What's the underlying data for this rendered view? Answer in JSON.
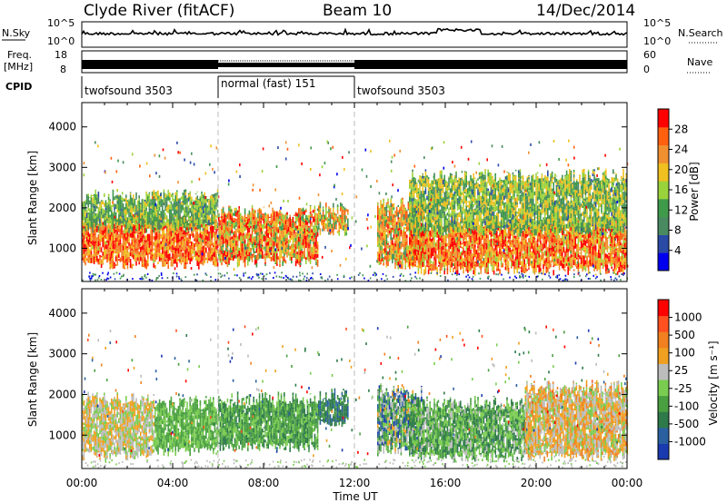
{
  "header": {
    "station": "Clyde River (fitACF)",
    "beam": "Beam 10",
    "date": "14/Dec/2014"
  },
  "strip": {
    "nsky_label": "N.Sky",
    "nsearch_label": "N.Search",
    "freq_label_1": "Freq.",
    "freq_label_2": "[MHz]",
    "nave_label": "Nave",
    "cpid_label": "CPID",
    "noise_ticks": [
      "10^5",
      "10^0"
    ],
    "freq_ticks": [
      "18",
      "8"
    ],
    "nave_ticks": [
      "60",
      "0"
    ]
  },
  "cpid_segments": [
    {
      "name": "twofsound 3503",
      "start": 0,
      "end": 6
    },
    {
      "name": "normal (fast) 151",
      "start": 6,
      "end": 12
    },
    {
      "name": "twofsound 3503",
      "start": 12,
      "end": 24
    }
  ],
  "colors": {
    "power": [
      "#0000ee",
      "#2a4aa6",
      "#4a8a60",
      "#3f9a4a",
      "#9ad23c",
      "#f0c020",
      "#f09030",
      "#ff6010",
      "#ff0000"
    ],
    "velocity": [
      "#1a3ab0",
      "#2a60a0",
      "#2e7a4a",
      "#4aa040",
      "#7acc50",
      "#bcbcbc",
      "#f0a020",
      "#f08020",
      "#ff5020",
      "#ff0000"
    ]
  },
  "chart_data": [
    {
      "type": "heatmap",
      "title": "",
      "xlabel": "Time UT",
      "ylabel": "Slant Range [km]",
      "x_ticks": [
        "00:00",
        "04:00",
        "08:00",
        "12:00",
        "16:00",
        "20:00",
        "00:00"
      ],
      "y_ticks": [
        1000,
        2000,
        3000,
        4000
      ],
      "xlim": [
        0,
        24
      ],
      "ylim": [
        180,
        4600
      ],
      "colorbar_label": "Power [dB]",
      "colorbar_ticks": [
        28,
        24,
        20,
        16,
        12,
        8,
        4
      ],
      "range": [
        0,
        30
      ],
      "bands": [
        {
          "t0": 0.0,
          "t1": 6.0,
          "lo": 600,
          "hi": 1700,
          "v0": 16,
          "v1": 30
        },
        {
          "t0": 0.0,
          "t1": 6.0,
          "lo": 1500,
          "hi": 2300,
          "v0": 6,
          "v1": 18
        },
        {
          "t0": 6.0,
          "t1": 10.4,
          "lo": 650,
          "hi": 1900,
          "v0": 10,
          "v1": 30
        },
        {
          "t0": 10.4,
          "t1": 11.7,
          "lo": 1400,
          "hi": 2000,
          "v0": 8,
          "v1": 26
        },
        {
          "t0": 13.0,
          "t1": 15.0,
          "lo": 600,
          "hi": 2100,
          "v0": 8,
          "v1": 28
        },
        {
          "t0": 14.4,
          "t1": 24.0,
          "lo": 450,
          "hi": 1600,
          "v0": 14,
          "v1": 30
        },
        {
          "t0": 14.4,
          "t1": 24.0,
          "lo": 1400,
          "hi": 2800,
          "v0": 6,
          "v1": 20
        }
      ]
    },
    {
      "type": "heatmap",
      "title": "",
      "xlabel": "Time UT",
      "ylabel": "Slant Range [km]",
      "x_ticks": [
        "00:00",
        "04:00",
        "08:00",
        "12:00",
        "16:00",
        "20:00",
        "00:00"
      ],
      "y_ticks": [
        1000,
        2000,
        3000,
        4000
      ],
      "xlim": [
        0,
        24
      ],
      "ylim": [
        180,
        4600
      ],
      "colorbar_label": "Velocity [m s⁻¹]",
      "colorbar_ticks": [
        1000,
        500,
        100,
        25,
        -25,
        -100,
        -500,
        -1000
      ],
      "range": [
        -1000,
        1000
      ],
      "bands": [
        {
          "t0": 0.0,
          "t1": 3.2,
          "lo": 500,
          "hi": 1900,
          "v0": -150,
          "v1": 400
        },
        {
          "t0": 3.2,
          "t1": 6.0,
          "lo": 600,
          "hi": 1800,
          "v0": -400,
          "v1": -50
        },
        {
          "t0": 6.0,
          "t1": 10.4,
          "lo": 700,
          "hi": 1900,
          "v0": -500,
          "v1": -100
        },
        {
          "t0": 10.4,
          "t1": 11.7,
          "lo": 1300,
          "hi": 2000,
          "v0": -700,
          "v1": -300
        },
        {
          "t0": 13.0,
          "t1": 15.0,
          "lo": 600,
          "hi": 2100,
          "v0": -900,
          "v1": 300
        },
        {
          "t0": 14.4,
          "t1": 19.5,
          "lo": 450,
          "hi": 1800,
          "v0": -600,
          "v1": 100
        },
        {
          "t0": 19.5,
          "t1": 24.0,
          "lo": 450,
          "hi": 2200,
          "v0": -100,
          "v1": 500
        }
      ]
    }
  ]
}
